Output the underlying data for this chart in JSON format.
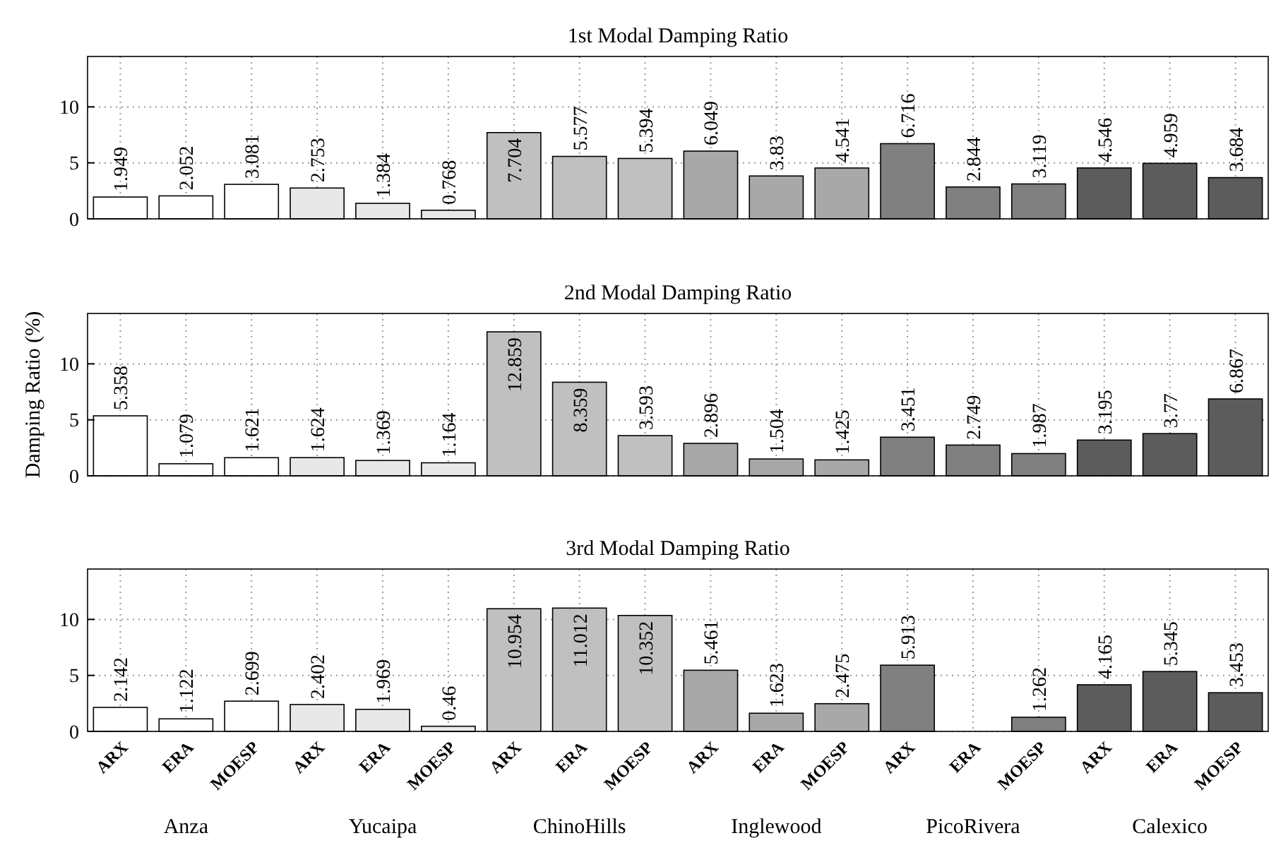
{
  "chart_data": [
    {
      "type": "bar",
      "title": "1st Modal Damping Ratio",
      "categories": [
        null,
        null,
        null,
        null,
        null,
        null,
        null,
        null,
        null,
        null,
        null,
        null,
        null,
        null,
        null,
        null,
        null,
        null
      ],
      "values": [
        1.949,
        2.052,
        3.081,
        2.753,
        1.384,
        0.768,
        7.704,
        5.577,
        5.394,
        6.049,
        3.83,
        4.541,
        6.716,
        2.844,
        3.119,
        4.546,
        4.959,
        3.684
      ],
      "colors": [
        "#ffffff",
        "#ffffff",
        "#ffffff",
        "#e8e8e8",
        "#e8e8e8",
        "#e8e8e8",
        "#c0c0c0",
        "#c0c0c0",
        "#c0c0c0",
        "#a8a8a8",
        "#a8a8a8",
        "#a8a8a8",
        "#808080",
        "#808080",
        "#808080",
        "#5c5c5c",
        "#5c5c5c",
        "#5c5c5c"
      ],
      "ylim": [
        0,
        14.5
      ],
      "yticks": [
        0,
        5,
        10
      ],
      "grid": true,
      "data_labels": true,
      "tick_labels": "y"
    },
    {
      "type": "bar",
      "title": "2nd Modal Damping Ratio",
      "ylabel": "Damping Ratio (%)",
      "categories": [
        null,
        null,
        null,
        null,
        null,
        null,
        null,
        null,
        null,
        null,
        null,
        null,
        null,
        null,
        null,
        null,
        null,
        null
      ],
      "values": [
        5.358,
        1.079,
        1.621,
        1.624,
        1.369,
        1.164,
        12.859,
        8.359,
        3.593,
        2.896,
        1.504,
        1.425,
        3.451,
        2.749,
        1.987,
        3.195,
        3.77,
        6.867
      ],
      "colors": [
        "#ffffff",
        "#ffffff",
        "#ffffff",
        "#e8e8e8",
        "#e8e8e8",
        "#e8e8e8",
        "#c0c0c0",
        "#c0c0c0",
        "#c0c0c0",
        "#a8a8a8",
        "#a8a8a8",
        "#a8a8a8",
        "#808080",
        "#808080",
        "#808080",
        "#5c5c5c",
        "#5c5c5c",
        "#5c5c5c"
      ],
      "ylim": [
        0,
        14.5
      ],
      "yticks": [
        0,
        5,
        10
      ],
      "grid": true,
      "data_labels": true,
      "tick_labels": "y"
    },
    {
      "type": "bar",
      "title": "3rd Modal Damping Ratio",
      "categories": [
        "ARX",
        "ERA",
        "MOESP",
        "ARX",
        "ERA",
        "MOESP",
        "ARX",
        "ERA",
        "MOESP",
        "ARX",
        "ERA",
        "MOESP",
        "ARX",
        "ERA",
        "MOESP",
        "ARX",
        "ERA",
        "MOESP"
      ],
      "values": [
        2.142,
        1.122,
        2.699,
        2.402,
        1.969,
        0.46,
        10.954,
        11.012,
        10.352,
        5.461,
        1.623,
        2.475,
        5.913,
        null,
        1.262,
        4.165,
        5.345,
        3.453
      ],
      "colors": [
        "#ffffff",
        "#ffffff",
        "#ffffff",
        "#e8e8e8",
        "#e8e8e8",
        "#e8e8e8",
        "#c0c0c0",
        "#c0c0c0",
        "#c0c0c0",
        "#a8a8a8",
        "#a8a8a8",
        "#a8a8a8",
        "#808080",
        null,
        "#808080",
        "#5c5c5c",
        "#5c5c5c",
        "#5c5c5c"
      ],
      "ylim": [
        0,
        14.5
      ],
      "yticks": [
        0,
        5,
        10
      ],
      "grid": true,
      "data_labels": true,
      "annotations": [
        "Anza",
        "Yucaipa",
        "ChinoHills",
        "Inglewood",
        "PicoRivera",
        "Calexico"
      ]
    }
  ]
}
